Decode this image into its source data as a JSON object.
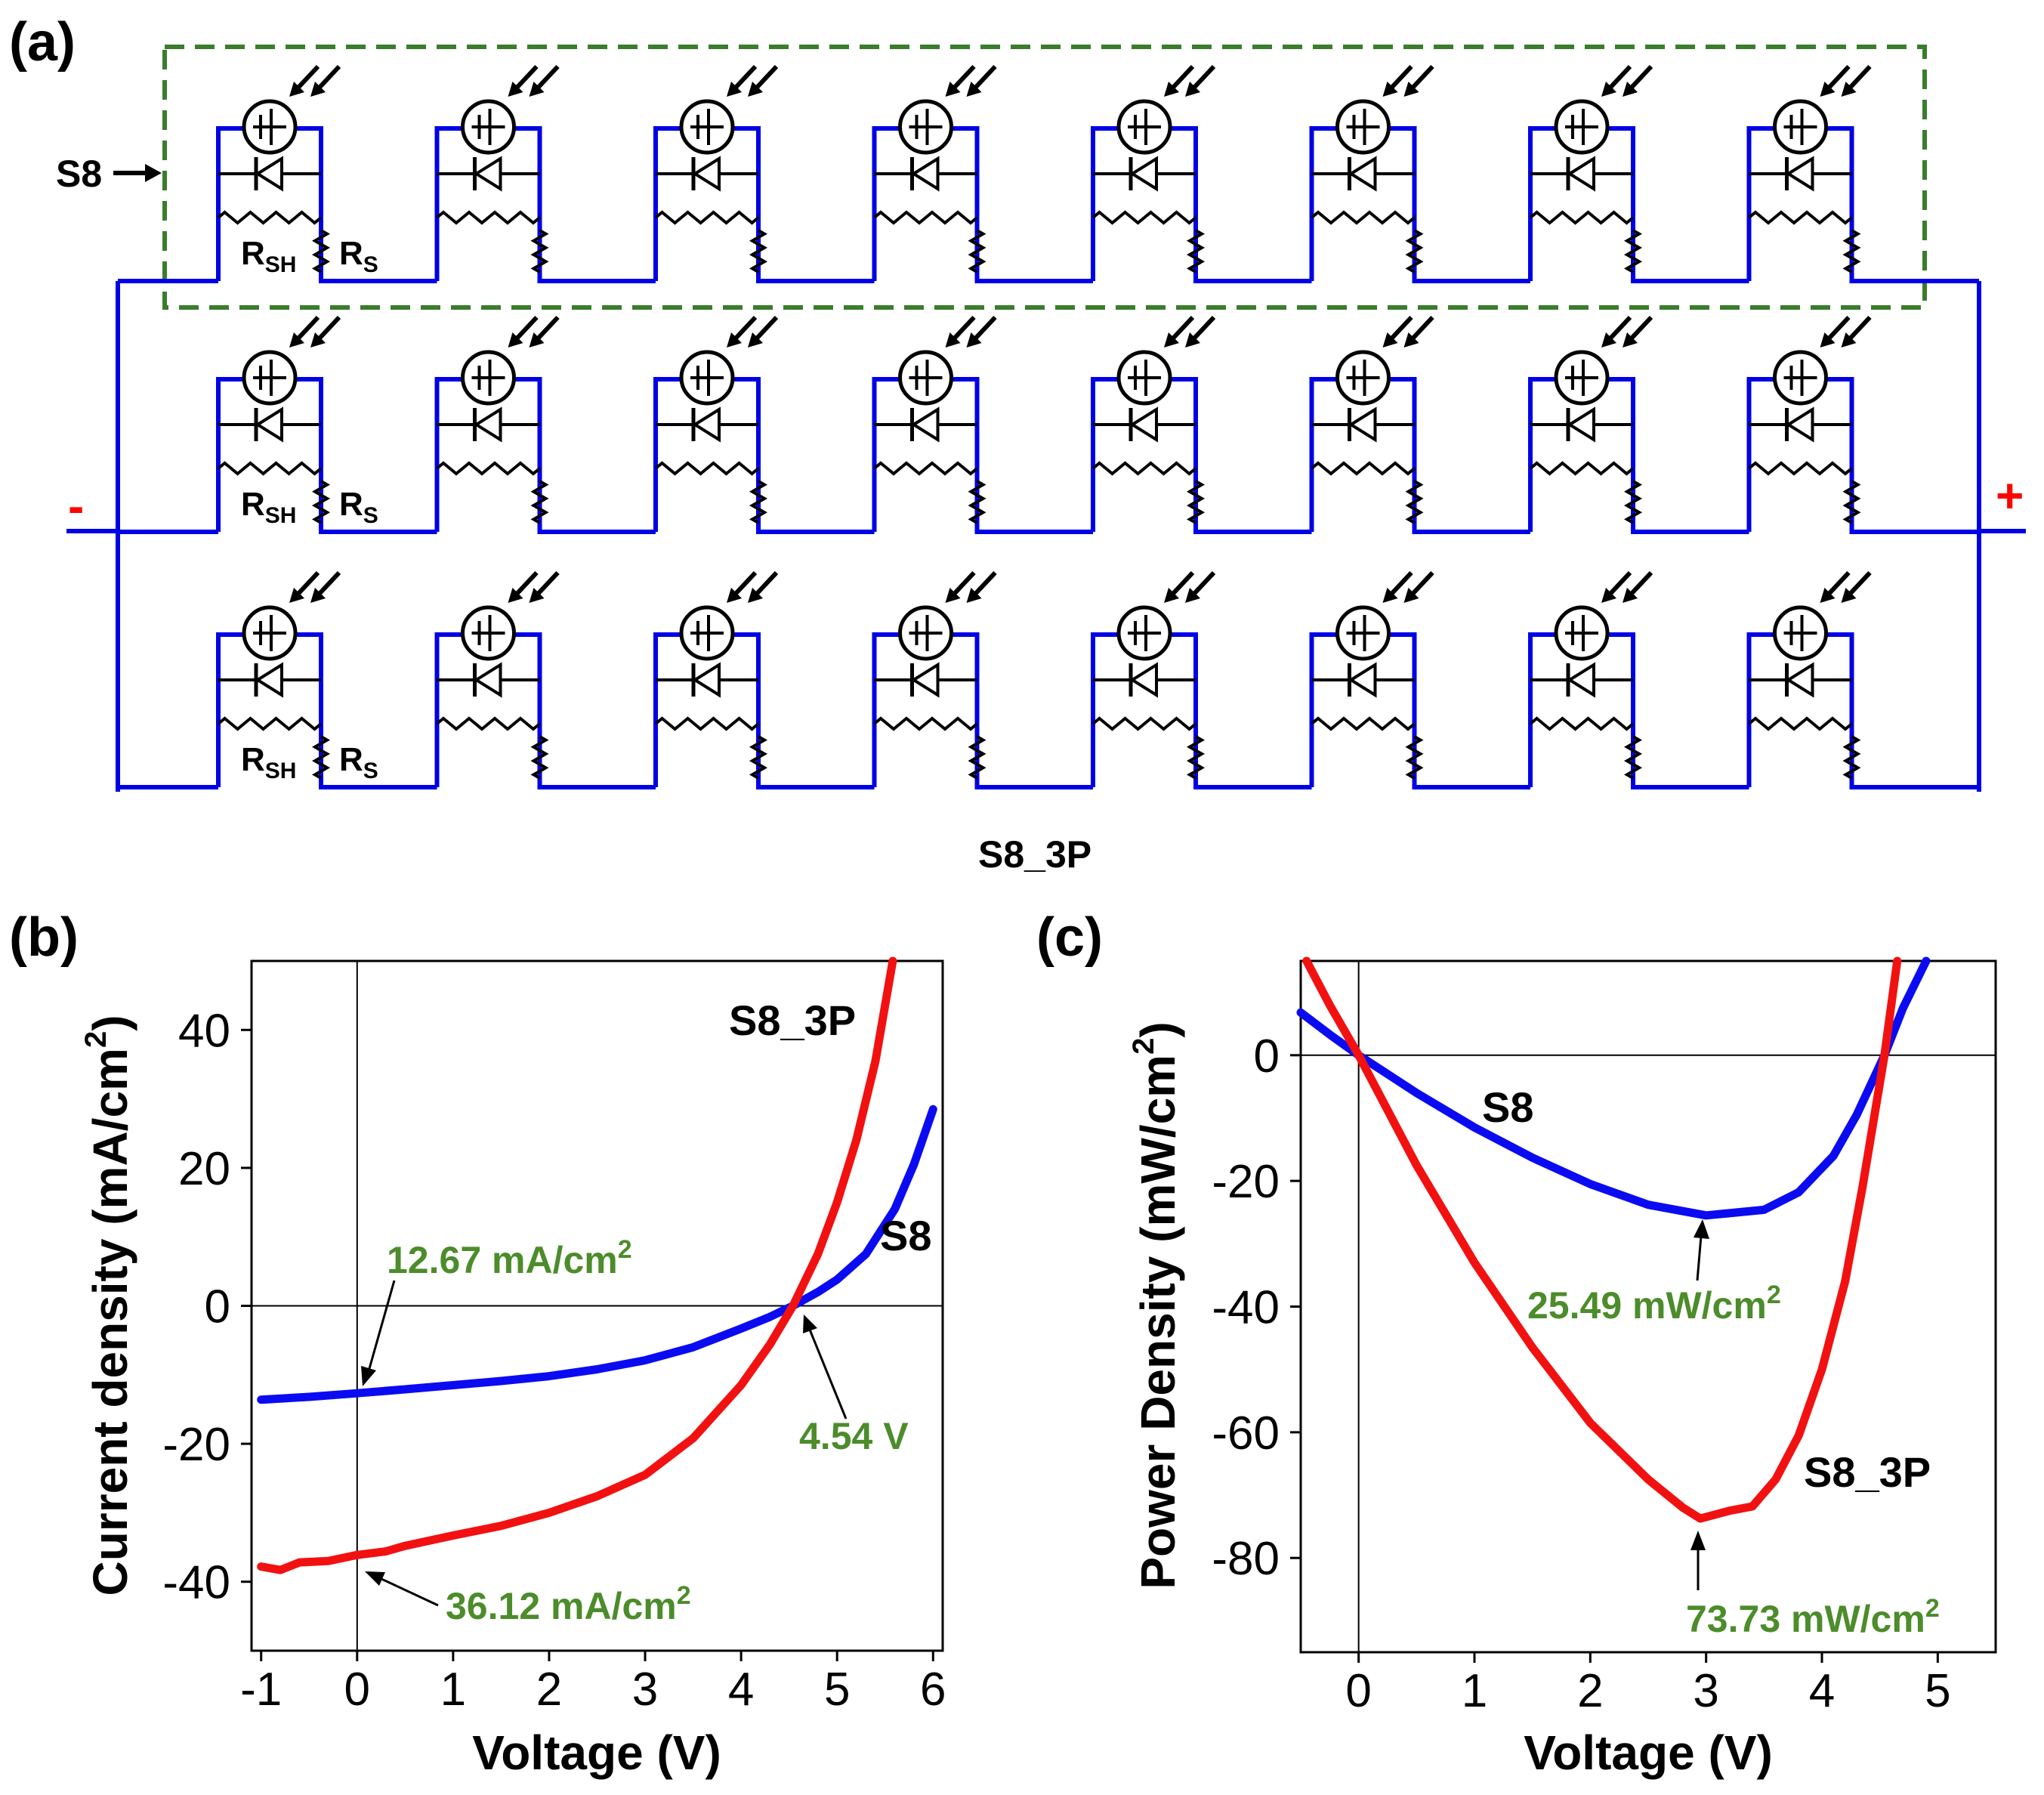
{
  "colors": {
    "wire": "#0000e6",
    "frame": "#3a7d2c",
    "annotation": "#4c8c2b",
    "s8": "#0b0bf2",
    "s8_3p": "#f21111",
    "axis": "#000000",
    "plus": "#ff0000"
  },
  "panel_a": {
    "label": "(a)",
    "module_label": "S8",
    "array_label": "S8_3P",
    "rsh_main": "R",
    "rsh_sub": "SH",
    "rs_main": "R",
    "rs_sub": "S",
    "minus": "-",
    "plus": "+",
    "cells_per_string": 8,
    "strings_in_parallel": 3,
    "icons": [
      "current-source-icon",
      "light-arrow-icon",
      "diode-icon",
      "shunt-resistor-icon",
      "series-resistor-icon"
    ]
  },
  "chart_data": [
    {
      "panel": "(b)",
      "type": "line",
      "xlabel": "Voltage (V)",
      "ylabel_main": "Current density (mA/cm",
      "ylabel_sup": "2",
      "ylabel_end": ")",
      "xlim": [
        -1.1,
        6.1
      ],
      "ylim": [
        -50,
        50
      ],
      "xticks": [
        -1,
        0,
        1,
        2,
        3,
        4,
        5,
        6
      ],
      "yticks": [
        -40,
        -20,
        0,
        20,
        40
      ],
      "series": [
        {
          "name": "S8",
          "color": "#0b0bf2",
          "points": [
            [
              -1,
              -13.6
            ],
            [
              -0.5,
              -13.2
            ],
            [
              0,
              -12.67
            ],
            [
              0.5,
              -12.1
            ],
            [
              1,
              -11.5
            ],
            [
              1.5,
              -10.9
            ],
            [
              2,
              -10.2
            ],
            [
              2.5,
              -9.2
            ],
            [
              3,
              -7.9
            ],
            [
              3.5,
              -6.0
            ],
            [
              4,
              -3.3
            ],
            [
              4.3,
              -1.6
            ],
            [
              4.54,
              0
            ],
            [
              4.8,
              2.0
            ],
            [
              5,
              3.8
            ],
            [
              5.3,
              7.5
            ],
            [
              5.6,
              14.0
            ],
            [
              5.8,
              20.5
            ],
            [
              6,
              28.5
            ]
          ]
        },
        {
          "name": "S8_3P",
          "color": "#f21111",
          "points": [
            [
              -1,
              -37.8
            ],
            [
              -0.8,
              -38.3
            ],
            [
              -0.6,
              -37.2
            ],
            [
              -0.3,
              -37.0
            ],
            [
              0,
              -36.12
            ],
            [
              0.3,
              -35.6
            ],
            [
              0.5,
              -34.8
            ],
            [
              1,
              -33.3
            ],
            [
              1.5,
              -31.9
            ],
            [
              2,
              -30.0
            ],
            [
              2.5,
              -27.6
            ],
            [
              3,
              -24.5
            ],
            [
              3.5,
              -19.2
            ],
            [
              4,
              -11.5
            ],
            [
              4.3,
              -5.6
            ],
            [
              4.54,
              0
            ],
            [
              4.8,
              7.5
            ],
            [
              5,
              15.0
            ],
            [
              5.2,
              24.0
            ],
            [
              5.4,
              35.5
            ],
            [
              5.58,
              50
            ]
          ]
        }
      ],
      "curve_labels": {
        "s8": "S8",
        "s8_3p": "S8_3P"
      },
      "annotations": [
        {
          "text": "12.67 mA/cm",
          "sup": "2"
        },
        {
          "text": "36.12 mA/cm",
          "sup": "2"
        },
        {
          "text": "4.54 V",
          "sup": ""
        }
      ]
    },
    {
      "panel": "(c)",
      "type": "line",
      "xlabel": "Voltage (V)",
      "ylabel_main": "Power Density (mW/cm",
      "ylabel_sup": "2",
      "ylabel_end": ")",
      "xlim": [
        -0.5,
        5.5
      ],
      "ylim": [
        -95,
        15
      ],
      "xticks": [
        0,
        1,
        2,
        3,
        4,
        5
      ],
      "yticks": [
        0,
        -20,
        -40,
        -60,
        -80
      ],
      "series": [
        {
          "name": "S8",
          "color": "#0b0bf2",
          "points": [
            [
              -0.5,
              6.8
            ],
            [
              -0.25,
              3.3
            ],
            [
              0,
              0
            ],
            [
              0.5,
              -6.0
            ],
            [
              1,
              -11.5
            ],
            [
              1.5,
              -16.3
            ],
            [
              2,
              -20.5
            ],
            [
              2.5,
              -23.8
            ],
            [
              3,
              -25.49
            ],
            [
              3.5,
              -24.6
            ],
            [
              3.8,
              -21.8
            ],
            [
              4.1,
              -16.0
            ],
            [
              4.3,
              -9.5
            ],
            [
              4.54,
              0
            ],
            [
              4.7,
              7.5
            ],
            [
              4.9,
              15
            ]
          ]
        },
        {
          "name": "S8_3P",
          "color": "#f21111",
          "points": [
            [
              -0.45,
              15
            ],
            [
              -0.25,
              8.0
            ],
            [
              0,
              0
            ],
            [
              0.5,
              -17.5
            ],
            [
              1,
              -33.0
            ],
            [
              1.5,
              -46.5
            ],
            [
              2,
              -58.5
            ],
            [
              2.5,
              -67.5
            ],
            [
              2.8,
              -72.0
            ],
            [
              2.95,
              -73.73
            ],
            [
              3.2,
              -72.5
            ],
            [
              3.4,
              -71.8
            ],
            [
              3.6,
              -67.5
            ],
            [
              3.8,
              -60.5
            ],
            [
              4,
              -50.0
            ],
            [
              4.2,
              -36.0
            ],
            [
              4.35,
              -21.0
            ],
            [
              4.54,
              0
            ],
            [
              4.65,
              15
            ]
          ]
        }
      ],
      "curve_labels": {
        "s8": "S8",
        "s8_3p": "S8_3P"
      },
      "annotations": [
        {
          "text": "25.49 mW/cm",
          "sup": "2"
        },
        {
          "text": "73.73 mW/cm",
          "sup": "2"
        }
      ]
    }
  ]
}
